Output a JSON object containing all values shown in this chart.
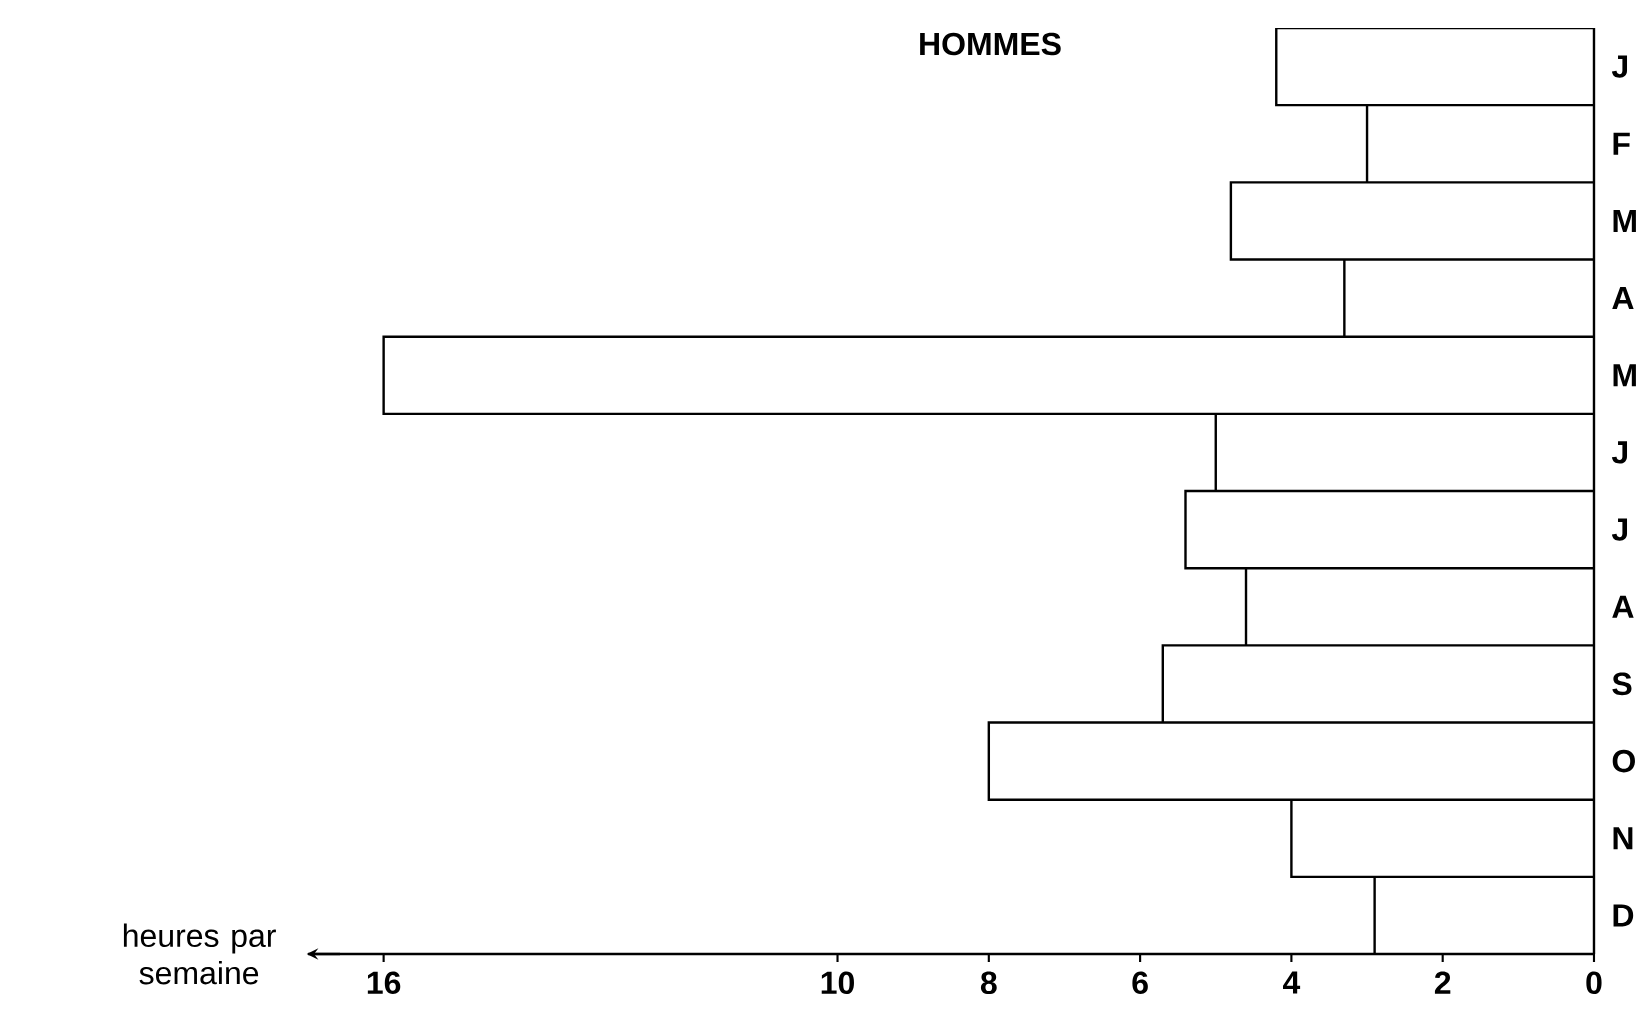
{
  "chart_data": {
    "type": "bar",
    "orientation": "horizontal",
    "title": "HOMMES",
    "xlabel": "heures par semaine",
    "categories": [
      "J",
      "F",
      "M",
      "A",
      "M",
      "J",
      "J",
      "A",
      "S",
      "O",
      "N",
      "D"
    ],
    "values": [
      4.2,
      3.0,
      4.8,
      3.3,
      16.0,
      5.0,
      5.4,
      4.6,
      5.7,
      8.0,
      4.0,
      2.9
    ],
    "color": "#ffffff",
    "xlim": [
      17,
      0
    ],
    "xticks": [
      0,
      2,
      4,
      6,
      8,
      10,
      16
    ]
  }
}
